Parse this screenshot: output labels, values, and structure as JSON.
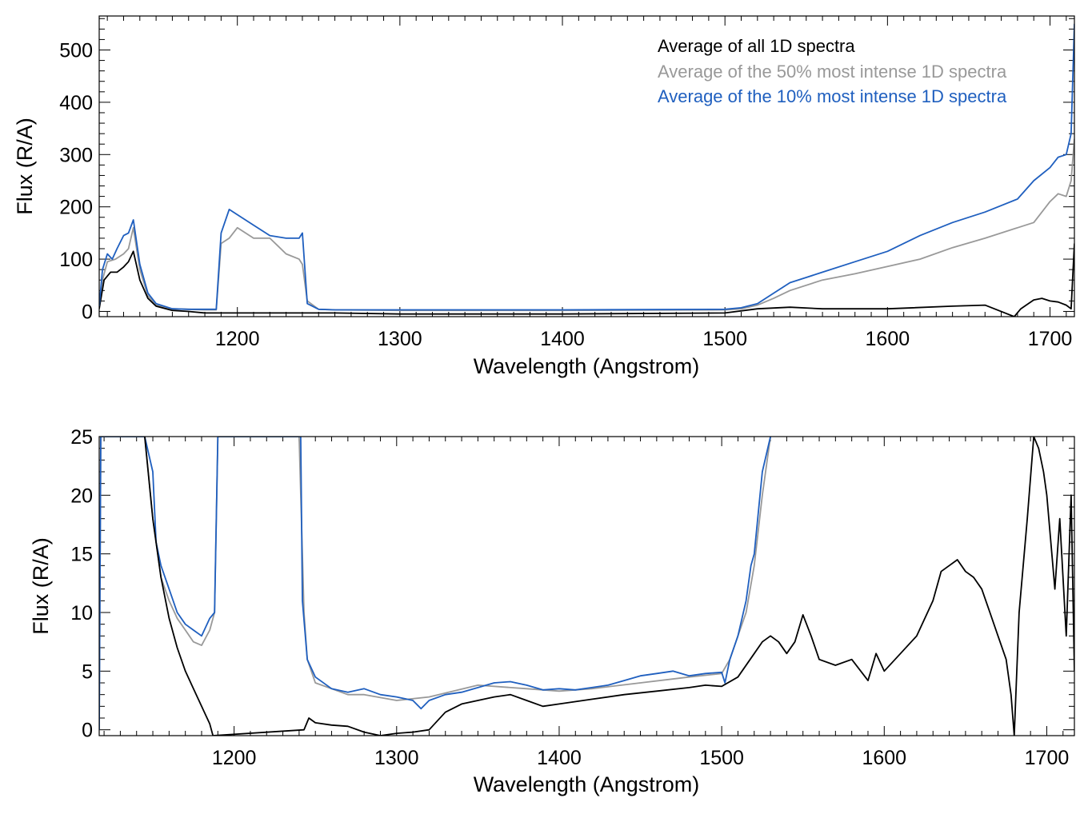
{
  "chart_data": [
    {
      "type": "line",
      "title": "",
      "xlabel": "Wavelength (Angstrom)",
      "ylabel": "Flux (R/A)",
      "xlim": [
        1115,
        1715
      ],
      "ylim": [
        -10,
        565
      ],
      "xticks": [
        1200,
        1300,
        1400,
        1500,
        1600,
        1700
      ],
      "yticks": [
        0,
        100,
        200,
        300,
        400,
        500
      ],
      "grid": false,
      "legend_position": "top-right",
      "series": [
        {
          "name": "Average of all 1D spectra",
          "color": "#000000",
          "x": [
            1115,
            1118,
            1122,
            1126,
            1130,
            1133,
            1136,
            1140,
            1145,
            1150,
            1160,
            1170,
            1180,
            1190,
            1200,
            1240,
            1245,
            1260,
            1300,
            1400,
            1500,
            1520,
            1540,
            1560,
            1600,
            1640,
            1660,
            1678,
            1682,
            1690,
            1695,
            1700,
            1705,
            1710,
            1713,
            1715
          ],
          "y": [
            5,
            60,
            75,
            75,
            85,
            95,
            115,
            60,
            25,
            10,
            2,
            0,
            -3,
            -3,
            -3,
            -3,
            -3,
            -3,
            -5,
            -5,
            -3,
            5,
            8,
            5,
            5,
            10,
            12,
            -12,
            5,
            22,
            25,
            20,
            18,
            12,
            5,
            130
          ]
        },
        {
          "name": "Average of the 50% most intense 1D spectra",
          "color": "#999999",
          "x": [
            1115,
            1117,
            1120,
            1125,
            1130,
            1133,
            1136,
            1140,
            1145,
            1150,
            1160,
            1170,
            1180,
            1187,
            1190,
            1195,
            1200,
            1210,
            1220,
            1225,
            1230,
            1238,
            1240,
            1243,
            1250,
            1260,
            1300,
            1400,
            1500,
            1510,
            1520,
            1530,
            1540,
            1560,
            1580,
            1600,
            1620,
            1640,
            1660,
            1680,
            1690,
            1700,
            1705,
            1710,
            1713,
            1715
          ],
          "y": [
            10,
            60,
            95,
            100,
            110,
            120,
            160,
            80,
            30,
            12,
            5,
            4,
            3,
            3,
            130,
            140,
            160,
            140,
            140,
            125,
            110,
            100,
            90,
            20,
            4,
            3,
            2,
            2,
            3,
            5,
            12,
            25,
            40,
            60,
            72,
            86,
            100,
            122,
            140,
            160,
            170,
            210,
            225,
            220,
            250,
            330
          ]
        },
        {
          "name": "Average of the 10% most intense 1D spectra",
          "color": "#1f5fbf",
          "x": [
            1115,
            1117,
            1120,
            1123,
            1126,
            1130,
            1133,
            1136,
            1140,
            1145,
            1150,
            1160,
            1170,
            1180,
            1187,
            1190,
            1195,
            1200,
            1210,
            1220,
            1230,
            1238,
            1240,
            1243,
            1250,
            1260,
            1300,
            1400,
            1500,
            1510,
            1520,
            1530,
            1540,
            1550,
            1560,
            1580,
            1600,
            1620,
            1640,
            1660,
            1680,
            1690,
            1700,
            1705,
            1710,
            1713,
            1715
          ],
          "y": [
            10,
            80,
            110,
            100,
            120,
            145,
            150,
            175,
            90,
            35,
            15,
            5,
            4,
            4,
            4,
            150,
            195,
            185,
            165,
            145,
            140,
            140,
            150,
            15,
            4,
            3,
            3,
            3,
            4,
            7,
            15,
            35,
            55,
            65,
            75,
            95,
            115,
            145,
            170,
            190,
            215,
            250,
            275,
            295,
            300,
            340,
            550
          ]
        }
      ]
    },
    {
      "type": "line",
      "title": "",
      "xlabel": "Wavelength (Angstrom)",
      "ylabel": "Flux (R/A)",
      "xlim": [
        1117,
        1717
      ],
      "ylim": [
        -0.5,
        25
      ],
      "xticks": [
        1200,
        1300,
        1400,
        1500,
        1600,
        1700
      ],
      "yticks": [
        0,
        5,
        10,
        15,
        20,
        25
      ],
      "grid": false,
      "series": [
        {
          "name": "Average of all 1D spectra",
          "color": "#000000",
          "x": [
            1145,
            1150,
            1155,
            1160,
            1165,
            1170,
            1175,
            1180,
            1185,
            1187,
            1243,
            1246,
            1250,
            1260,
            1270,
            1280,
            1290,
            1300,
            1310,
            1320,
            1330,
            1340,
            1350,
            1360,
            1370,
            1380,
            1390,
            1400,
            1420,
            1440,
            1460,
            1480,
            1490,
            1500,
            1510,
            1520,
            1525,
            1530,
            1535,
            1540,
            1545,
            1550,
            1555,
            1560,
            1570,
            1580,
            1590,
            1595,
            1600,
            1610,
            1620,
            1630,
            1635,
            1640,
            1645,
            1650,
            1655,
            1660,
            1665,
            1670,
            1675,
            1678,
            1680,
            1683,
            1688,
            1692,
            1695,
            1698,
            1700,
            1705,
            1708,
            1712,
            1715,
            1717
          ],
          "y": [
            25,
            18,
            13,
            9.5,
            7,
            5,
            3.5,
            2,
            0.5,
            -0.5,
            0,
            1,
            0.6,
            0.4,
            0.3,
            -0.2,
            -0.5,
            -0.3,
            -0.2,
            0,
            1.5,
            2.2,
            2.5,
            2.8,
            3,
            2.5,
            2,
            2.2,
            2.6,
            3,
            3.3,
            3.6,
            3.8,
            3.7,
            4.5,
            6.5,
            7.5,
            8,
            7.5,
            6.5,
            7.5,
            9.8,
            8,
            6,
            5.5,
            6,
            4.2,
            6.5,
            5,
            6.5,
            8,
            11,
            13.5,
            14,
            14.5,
            13.5,
            13,
            12,
            10,
            8,
            6,
            3,
            -0.5,
            10,
            18,
            25,
            24,
            22,
            20,
            12,
            18,
            8,
            20,
            5
          ]
        },
        {
          "name": "Average of the 50% most intense 1D spectra",
          "color": "#999999",
          "x": [
            1117,
            1118,
            1121,
            1125,
            1130,
            1135,
            1140,
            1145,
            1150,
            1155,
            1160,
            1165,
            1170,
            1175,
            1180,
            1185,
            1188,
            1190,
            1240,
            1243,
            1245,
            1250,
            1260,
            1270,
            1280,
            1300,
            1320,
            1350,
            1380,
            1400,
            1420,
            1450,
            1480,
            1500,
            1505,
            1510,
            1515,
            1520,
            1525,
            1530
          ],
          "y": [
            0,
            25,
            25,
            25,
            25,
            25,
            25,
            25,
            18,
            13,
            11,
            9.5,
            8.5,
            7.5,
            7.2,
            8.5,
            10,
            25,
            25,
            10,
            6,
            4,
            3.5,
            3,
            3,
            2.5,
            2.8,
            3.8,
            3.5,
            3.3,
            3.5,
            4,
            4.5,
            4.8,
            6,
            8,
            10,
            14,
            20,
            25
          ]
        },
        {
          "name": "Average of the 10% most intense 1D spectra",
          "color": "#1f5fbf",
          "x": [
            1117,
            1118,
            1121,
            1125,
            1130,
            1135,
            1140,
            1145,
            1150,
            1152,
            1155,
            1160,
            1165,
            1170,
            1175,
            1180,
            1185,
            1188,
            1190,
            1241,
            1242,
            1245,
            1250,
            1260,
            1270,
            1280,
            1290,
            1300,
            1310,
            1315,
            1320,
            1330,
            1340,
            1350,
            1360,
            1370,
            1380,
            1390,
            1400,
            1410,
            1420,
            1430,
            1440,
            1450,
            1460,
            1470,
            1480,
            1490,
            1500,
            1502,
            1505,
            1510,
            1515,
            1518,
            1520,
            1525,
            1530
          ],
          "y": [
            0,
            25,
            25,
            25,
            25,
            25,
            25,
            25,
            22,
            16,
            14,
            12,
            10,
            9,
            8.5,
            8,
            9.5,
            10,
            25,
            25,
            11,
            6,
            4.5,
            3.5,
            3.2,
            3.5,
            3,
            2.8,
            2.5,
            1.8,
            2.5,
            3,
            3.2,
            3.6,
            4,
            4.1,
            3.8,
            3.4,
            3.5,
            3.4,
            3.6,
            3.8,
            4.2,
            4.6,
            4.8,
            5,
            4.6,
            4.8,
            4.9,
            4,
            6,
            8,
            11,
            14,
            15,
            22,
            25
          ]
        }
      ]
    }
  ]
}
